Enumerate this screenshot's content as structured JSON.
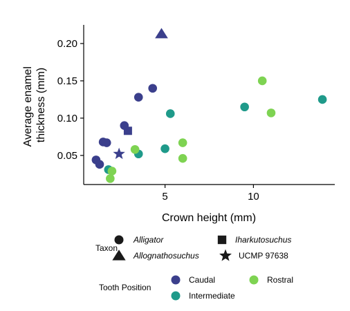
{
  "chart_data": {
    "type": "scatter",
    "xlabel": "Crown height (mm)",
    "ylabel": [
      "Average enamel",
      "thickness (mm)"
    ],
    "xlim": [
      0.4,
      14.6
    ],
    "ylim": [
      0.011,
      0.225
    ],
    "x_ticks": [
      5,
      10
    ],
    "y_ticks": [
      0.05,
      0.1,
      0.15,
      0.2
    ],
    "y_tick_labels": [
      "0.05",
      "0.10",
      "0.15",
      "0.20"
    ],
    "grid": false,
    "legend": {
      "placement": "bottom",
      "taxon_title": "Taxon",
      "taxa": [
        {
          "label": "Alligator",
          "shape": "circle",
          "italic": true
        },
        {
          "label": "Iharkutosuchus",
          "shape": "square",
          "italic": true
        },
        {
          "label": "Allognathosuchus",
          "shape": "triangle",
          "italic": true
        },
        {
          "label": "UCMP 97638",
          "shape": "star",
          "italic": false
        }
      ],
      "position_title": "Tooth Position",
      "positions": [
        {
          "label": "Caudal",
          "color": "#3b3f8c"
        },
        {
          "label": "Rostral",
          "color": "#7ed352"
        },
        {
          "label": "Intermediate",
          "color": "#1f9a8a"
        }
      ]
    },
    "colors": {
      "Caudal": "#3b3f8c",
      "Intermediate": "#1f9a8a",
      "Rostral": "#7ed352",
      "legend_shape": "#1a1a1a"
    },
    "points": [
      {
        "x": 1.1,
        "y": 0.044,
        "shape": "circle",
        "position": "Caudal"
      },
      {
        "x": 1.3,
        "y": 0.038,
        "shape": "circle",
        "position": "Caudal"
      },
      {
        "x": 1.5,
        "y": 0.068,
        "shape": "circle",
        "position": "Caudal"
      },
      {
        "x": 1.7,
        "y": 0.067,
        "shape": "circle",
        "position": "Caudal"
      },
      {
        "x": 2.7,
        "y": 0.09,
        "shape": "circle",
        "position": "Caudal"
      },
      {
        "x": 3.5,
        "y": 0.128,
        "shape": "circle",
        "position": "Caudal"
      },
      {
        "x": 4.3,
        "y": 0.14,
        "shape": "circle",
        "position": "Caudal"
      },
      {
        "x": 1.8,
        "y": 0.031,
        "shape": "circle",
        "position": "Intermediate"
      },
      {
        "x": 3.5,
        "y": 0.052,
        "shape": "circle",
        "position": "Intermediate"
      },
      {
        "x": 5.0,
        "y": 0.059,
        "shape": "circle",
        "position": "Intermediate"
      },
      {
        "x": 5.3,
        "y": 0.106,
        "shape": "circle",
        "position": "Intermediate"
      },
      {
        "x": 9.5,
        "y": 0.115,
        "shape": "circle",
        "position": "Intermediate"
      },
      {
        "x": 13.9,
        "y": 0.125,
        "shape": "circle",
        "position": "Intermediate"
      },
      {
        "x": 1.9,
        "y": 0.019,
        "shape": "circle",
        "position": "Rostral"
      },
      {
        "x": 2.0,
        "y": 0.029,
        "shape": "circle",
        "position": "Rostral"
      },
      {
        "x": 3.3,
        "y": 0.058,
        "shape": "circle",
        "position": "Rostral"
      },
      {
        "x": 6.0,
        "y": 0.067,
        "shape": "circle",
        "position": "Rostral"
      },
      {
        "x": 6.0,
        "y": 0.046,
        "shape": "circle",
        "position": "Rostral"
      },
      {
        "x": 10.5,
        "y": 0.15,
        "shape": "circle",
        "position": "Rostral"
      },
      {
        "x": 11.0,
        "y": 0.107,
        "shape": "circle",
        "position": "Rostral"
      },
      {
        "x": 2.9,
        "y": 0.083,
        "shape": "square",
        "position": "Caudal"
      },
      {
        "x": 4.8,
        "y": 0.213,
        "shape": "triangle",
        "position": "Caudal"
      },
      {
        "x": 2.4,
        "y": 0.052,
        "shape": "star",
        "position": "Caudal"
      }
    ]
  }
}
